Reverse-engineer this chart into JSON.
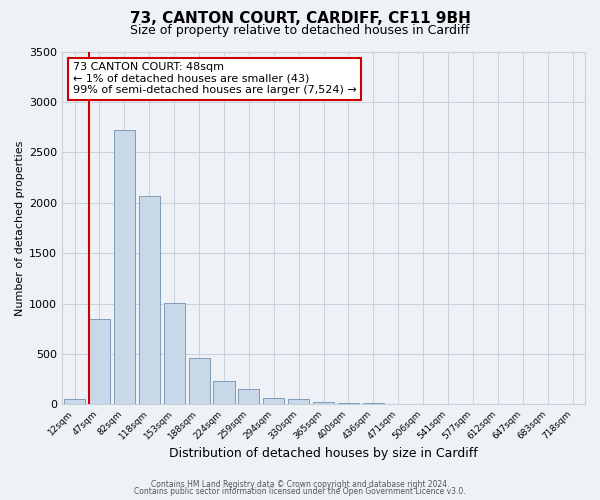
{
  "title": "73, CANTON COURT, CARDIFF, CF11 9BH",
  "subtitle": "Size of property relative to detached houses in Cardiff",
  "xlabel": "Distribution of detached houses by size in Cardiff",
  "ylabel": "Number of detached properties",
  "categories": [
    "12sqm",
    "47sqm",
    "82sqm",
    "118sqm",
    "153sqm",
    "188sqm",
    "224sqm",
    "259sqm",
    "294sqm",
    "330sqm",
    "365sqm",
    "400sqm",
    "436sqm",
    "471sqm",
    "506sqm",
    "541sqm",
    "577sqm",
    "612sqm",
    "647sqm",
    "683sqm",
    "718sqm"
  ],
  "bar_values": [
    55,
    850,
    2720,
    2070,
    1005,
    460,
    235,
    150,
    60,
    50,
    25,
    15,
    10,
    5,
    0,
    0,
    0,
    0,
    0,
    0,
    0
  ],
  "bar_color": "#c8d8e8",
  "bar_edge_color": "#7090b0",
  "vline_color": "#cc0000",
  "annotation_title": "73 CANTON COURT: 48sqm",
  "annotation_line1": "← 1% of detached houses are smaller (43)",
  "annotation_line2": "99% of semi-detached houses are larger (7,524) →",
  "annotation_box_color": "#ffffff",
  "annotation_box_edge_color": "#cc0000",
  "ylim": [
    0,
    3500
  ],
  "yticks": [
    0,
    500,
    1000,
    1500,
    2000,
    2500,
    3000,
    3500
  ],
  "footer1": "Contains HM Land Registry data © Crown copyright and database right 2024.",
  "footer2": "Contains public sector information licensed under the Open Government Licence v3.0.",
  "bg_color": "#eef2f7",
  "grid_color": "#c8d0dc",
  "title_fontsize": 11,
  "subtitle_fontsize": 9,
  "ylabel_fontsize": 8,
  "xlabel_fontsize": 9
}
